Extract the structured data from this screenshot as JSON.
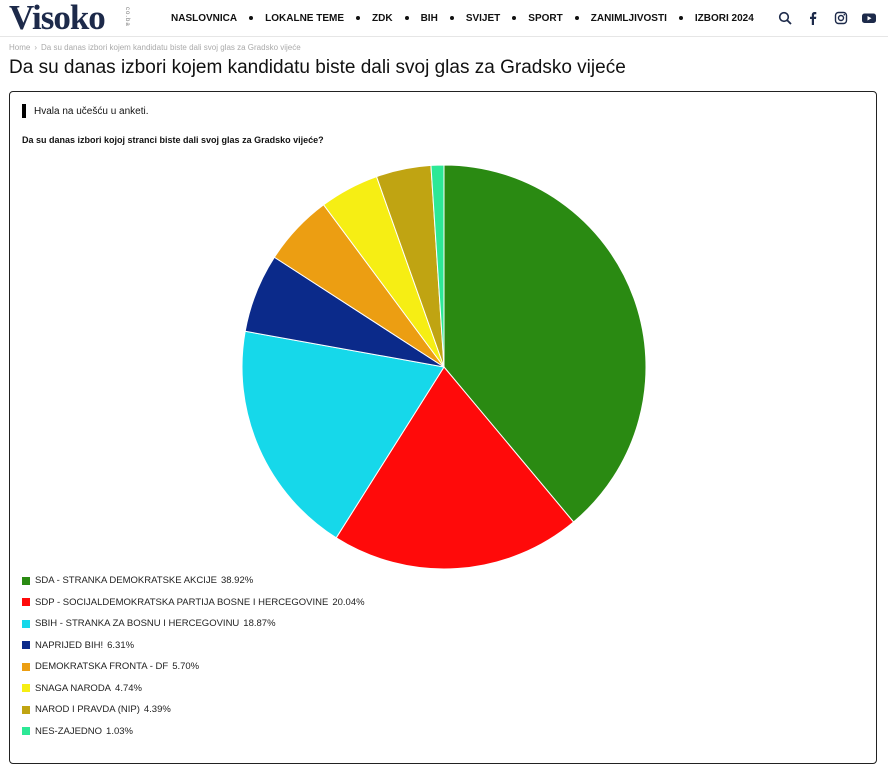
{
  "header": {
    "logo": "Visoko",
    "logo_sub": "co.ba",
    "nav": [
      "NASLOVNICA",
      "LOKALNE TEME",
      "ZDK",
      "BIH",
      "SVIJET",
      "SPORT",
      "ZANIMLJIVOSTI",
      "IZBORI 2024"
    ],
    "icons": [
      "search-icon",
      "facebook-icon",
      "instagram-icon",
      "youtube-icon"
    ]
  },
  "breadcrumb": {
    "home": "Home",
    "current": "Da su danas izbori kojem kandidatu biste dali svoj glas za Gradsko vijeće"
  },
  "page_title": "Da su danas izbori kojem kandidatu biste dali svoj glas za Gradsko vijeće",
  "poll": {
    "thanks": "Hvala na učešću u anketi.",
    "question": "Da su danas izbori kojoj stranci biste dali svoj glas za Gradsko vijeće?"
  },
  "chart_data": {
    "type": "pie",
    "categories": [
      "SDA - STRANKA DEMOKRATSKE AKCIJE",
      "SDP - SOCIJALDEMOKRATSKA PARTIJA BOSNE I HERCEGOVINE",
      "SBIH - STRANKA ZA BOSNU I HERCEGOVINU",
      "NAPRIJED BIH!",
      "DEMOKRATSKA FRONTA - DF",
      "SNAGA NARODA",
      "NAROD I PRAVDA (NIP)",
      "NES-ZAJEDNO"
    ],
    "values": [
      38.92,
      20.04,
      18.87,
      6.31,
      5.7,
      4.74,
      4.39,
      1.03
    ],
    "labels": [
      "38.92%",
      "20.04%",
      "18.87%",
      "6.31%",
      "5.70%",
      "4.74%",
      "4.39%",
      "1.03%"
    ],
    "colors": [
      "#2a8a12",
      "#ff0a0a",
      "#16d8ea",
      "#0b2a8a",
      "#ec9e12",
      "#f6ee14",
      "#c0a412",
      "#2de896"
    ],
    "legend_position": "bottom-left"
  }
}
